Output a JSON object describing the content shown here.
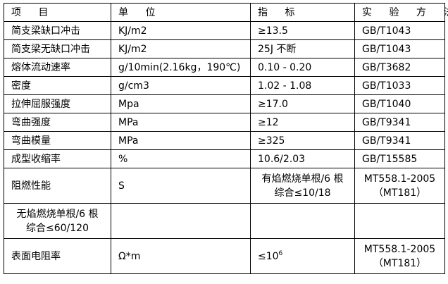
{
  "header": [
    "项 目",
    "单 位",
    "指 标",
    "实 验 方 法"
  ],
  "rows": [
    {
      "item": "简支梁缺口冲击",
      "unit": "KJ/m2",
      "spec": "≥13.5",
      "method": "GB/T1043"
    },
    {
      "item": "简支梁无缺口冲击",
      "unit": "KJ/m2",
      "spec": "25J 不断",
      "method": "GB/T1043"
    },
    {
      "item": "熔体流动速率",
      "unit": "g/10min(2.16kg，190℃)",
      "spec": "0.10 - 0.20",
      "method": "GB/T3682"
    },
    {
      "item": "密度",
      "unit": "g/cm3",
      "spec": "1.02 - 1.08",
      "method": "GB/T1033"
    },
    {
      "item": "拉伸屈服强度",
      "unit": "Mpa",
      "spec": "≥17.0",
      "method": "GB/T1040"
    },
    {
      "item": "弯曲强度",
      "unit": "MPa",
      "spec": "≥12",
      "method": "GB/T9341"
    },
    {
      "item": "弯曲模量",
      "unit": "MPa",
      "spec": "≥325",
      "method": "GB/T9341"
    },
    {
      "item": "成型收缩率",
      "unit": "%",
      "spec": "10.6/2.03",
      "method": "GB/T15585"
    }
  ],
  "flame": {
    "item": "阻燃性能",
    "unit": "S",
    "spec_line1": "有焰燃烧单根/6 根",
    "spec_line2": "综合≤10/18",
    "method_line1": "MT558.1-2005",
    "method_line2": "（MT181）"
  },
  "flameless": {
    "line1": "无焰燃烧单根/6 根",
    "line2": "综合≤60/120"
  },
  "resistivity": {
    "item": "表面电阻率",
    "unit": "Ω*m",
    "spec_base": "≤10",
    "spec_exp": "6",
    "method_line1": "MT558.1-2005",
    "method_line2": "（MT181）"
  }
}
